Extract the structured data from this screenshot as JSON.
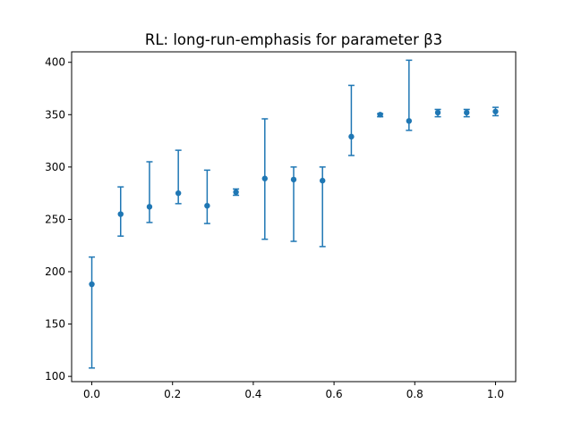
{
  "chart_data": {
    "type": "scatter",
    "title": "RL: long-run-emphasis for parameter β3",
    "xlabel": "",
    "ylabel": "",
    "xlim": [
      -0.05,
      1.05
    ],
    "ylim": [
      95,
      410
    ],
    "x_ticks": [
      0.0,
      0.2,
      0.4,
      0.6,
      0.8,
      1.0
    ],
    "x_tick_labels": [
      "0.0",
      "0.2",
      "0.4",
      "0.6",
      "0.8",
      "1.0"
    ],
    "y_ticks": [
      100,
      150,
      200,
      250,
      300,
      350,
      400
    ],
    "y_tick_labels": [
      "100",
      "150",
      "200",
      "250",
      "300",
      "350",
      "400"
    ],
    "grid": false,
    "color": "#1f77b4",
    "series": [
      {
        "points": [
          {
            "x": 0.0,
            "y": 188,
            "low": 108,
            "high": 214
          },
          {
            "x": 0.071429,
            "y": 255,
            "low": 234,
            "high": 281
          },
          {
            "x": 0.142857,
            "y": 262,
            "low": 247,
            "high": 305
          },
          {
            "x": 0.214286,
            "y": 275,
            "low": 265,
            "high": 316
          },
          {
            "x": 0.285714,
            "y": 263,
            "low": 246,
            "high": 297
          },
          {
            "x": 0.357143,
            "y": 276,
            "low": 273,
            "high": 279
          },
          {
            "x": 0.428571,
            "y": 289,
            "low": 231,
            "high": 346
          },
          {
            "x": 0.5,
            "y": 288,
            "low": 229,
            "high": 300
          },
          {
            "x": 0.571429,
            "y": 287,
            "low": 224,
            "high": 300
          },
          {
            "x": 0.642857,
            "y": 329,
            "low": 311,
            "high": 378
          },
          {
            "x": 0.714286,
            "y": 350,
            "low": 348,
            "high": 351
          },
          {
            "x": 0.785714,
            "y": 344,
            "low": 335,
            "high": 402
          },
          {
            "x": 0.857143,
            "y": 352,
            "low": 348,
            "high": 355
          },
          {
            "x": 0.928571,
            "y": 352,
            "low": 348,
            "high": 355
          },
          {
            "x": 1.0,
            "y": 353,
            "low": 349,
            "high": 357
          }
        ]
      }
    ]
  }
}
